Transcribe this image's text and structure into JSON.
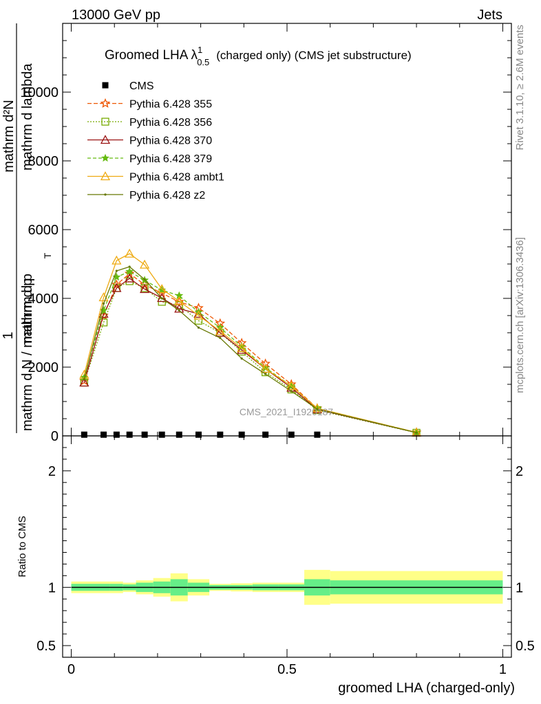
{
  "header": {
    "left": "13000 GeV pp",
    "right": "Jets"
  },
  "side": {
    "rivet": "Rivet 3.1.10, ≥ 2.6M events",
    "mcplots": "mcplots.cern.ch [arXiv:1306.3436]"
  },
  "main_title": {
    "prefix": "Groomed LHA",
    "lambda": "λ",
    "sup": "1",
    "sub": "0.5",
    "suffix": "(charged only) (CMS jet substructure)"
  },
  "ylabel": {
    "one": "1",
    "numerator_top": "mathrm d²N",
    "numerator_bottom": "mathrm d p",
    "numerator_t": "T",
    "numerator_tail": "mathrm d lambda",
    "denominator": "mathrm d N / mathrm d p",
    "denominator_t": "T"
  },
  "watermark": "CMS_2021_I1920187",
  "ratio_ylabel": "Ratio to CMS",
  "xlabel": "groomed LHA (charged-only)",
  "colors": {
    "p355": "#ee5500",
    "p356": "#77aa00",
    "p370": "#991111",
    "p379": "#66bb11",
    "ambt1": "#eeaa11",
    "z2": "#667700",
    "band_inner": "#66ee88",
    "band_outer": "#ffff88"
  },
  "chart_data": [
    {
      "type": "line",
      "title": "Groomed LHA λ^1_0.5 (charged only) (CMS jet substructure)",
      "xlabel": "groomed LHA (charged-only)",
      "ylabel": "1 / mathrm d N / mathrm d p_T  mathrm d²N / mathrm d p_T mathrm d lambda",
      "xlim": [
        -0.02,
        1.02
      ],
      "ylim": [
        0,
        12000
      ],
      "yticks": [
        0,
        2000,
        4000,
        6000,
        8000,
        10000
      ],
      "ytick_labels": [
        "0",
        "2000",
        "4000",
        "6000",
        "8000",
        "10000"
      ],
      "legend_position": "top-left",
      "data": {
        "name": "CMS",
        "x": [
          0.03,
          0.075,
          0.105,
          0.135,
          0.17,
          0.21,
          0.25,
          0.295,
          0.345,
          0.395,
          0.45,
          0.51,
          0.57
        ],
        "y": [
          5,
          5,
          5,
          5,
          5,
          5,
          5,
          5,
          5,
          5,
          5,
          5,
          5
        ]
      },
      "series": [
        {
          "name": "Pythia 6.428 355",
          "key": "p355",
          "marker": "star-open",
          "dash": "6,3",
          "x": [
            0.03,
            0.075,
            0.105,
            0.135,
            0.17,
            0.21,
            0.25,
            0.295,
            0.345,
            0.395,
            0.45,
            0.51,
            0.57,
            0.8
          ],
          "y": [
            1600,
            3500,
            4400,
            4720,
            4400,
            4150,
            3900,
            3720,
            3270,
            2700,
            2100,
            1500,
            800,
            100
          ]
        },
        {
          "name": "Pythia 6.428 356",
          "key": "p356",
          "marker": "square-open",
          "dash": "2,2",
          "x": [
            0.03,
            0.075,
            0.105,
            0.135,
            0.17,
            0.21,
            0.25,
            0.295,
            0.345,
            0.395,
            0.45,
            0.51,
            0.57,
            0.8
          ],
          "y": [
            1550,
            3300,
            4300,
            4500,
            4300,
            3900,
            3800,
            3350,
            3000,
            2450,
            1850,
            1350,
            750,
            90
          ]
        },
        {
          "name": "Pythia 6.428 370",
          "key": "p370",
          "marker": "triangle-open",
          "dash": "",
          "x": [
            0.03,
            0.075,
            0.105,
            0.135,
            0.17,
            0.21,
            0.25,
            0.295,
            0.345,
            0.395,
            0.45,
            0.51,
            0.57,
            0.8
          ],
          "y": [
            1550,
            3550,
            4300,
            4580,
            4270,
            4010,
            3700,
            3550,
            3000,
            2500,
            1950,
            1400,
            770,
            95
          ]
        },
        {
          "name": "Pythia 6.428 379",
          "key": "p379",
          "marker": "star-filled",
          "dash": "5,3",
          "x": [
            0.03,
            0.075,
            0.105,
            0.135,
            0.17,
            0.21,
            0.25,
            0.295,
            0.345,
            0.395,
            0.45,
            0.51,
            0.57,
            0.8
          ],
          "y": [
            1700,
            3650,
            4620,
            4780,
            4530,
            4240,
            4080,
            3600,
            3150,
            2600,
            1980,
            1450,
            800,
            100
          ]
        },
        {
          "name": "Pythia 6.428 ambt1",
          "key": "ambt1",
          "marker": "triangle-open",
          "dash": "",
          "x": [
            0.03,
            0.075,
            0.105,
            0.135,
            0.17,
            0.21,
            0.25,
            0.295,
            0.345,
            0.395,
            0.45,
            0.51,
            0.57,
            0.8
          ],
          "y": [
            1780,
            4030,
            5100,
            5300,
            4980,
            4270,
            3920,
            3500,
            3050,
            2550,
            1950,
            1450,
            800,
            100
          ]
        },
        {
          "name": "Pythia 6.428 z2",
          "key": "z2",
          "marker": "dot",
          "dash": "",
          "x": [
            0.03,
            0.075,
            0.105,
            0.135,
            0.17,
            0.21,
            0.25,
            0.295,
            0.345,
            0.395,
            0.45,
            0.51,
            0.57,
            0.8
          ],
          "y": [
            1650,
            3850,
            4800,
            4920,
            4550,
            4000,
            3650,
            3150,
            2850,
            2250,
            1800,
            1300,
            780,
            95
          ]
        }
      ]
    },
    {
      "type": "area",
      "ylabel": "Ratio to CMS",
      "xlabel": "groomed LHA (charged-only)",
      "xlim": [
        -0.02,
        1.02
      ],
      "ylim": [
        0.4,
        2.3
      ],
      "yticks": [
        0.5,
        1,
        2
      ],
      "ytick_labels": [
        "0.5",
        "1",
        "2"
      ],
      "xticks": [
        0,
        0.5,
        1
      ],
      "xtick_labels": [
        "0",
        "0.5",
        "1"
      ],
      "reference": 1,
      "bins": [
        0,
        0.09,
        0.12,
        0.15,
        0.19,
        0.23,
        0.27,
        0.32,
        0.37,
        0.42,
        0.48,
        0.54,
        0.6,
        1.0
      ],
      "inner_band": [
        0.03,
        0.03,
        0.025,
        0.04,
        0.05,
        0.07,
        0.04,
        0.02,
        0.02,
        0.025,
        0.025,
        0.07,
        0.06
      ],
      "outer_band": [
        0.05,
        0.05,
        0.04,
        0.06,
        0.08,
        0.12,
        0.07,
        0.03,
        0.035,
        0.04,
        0.04,
        0.15,
        0.14
      ]
    }
  ]
}
